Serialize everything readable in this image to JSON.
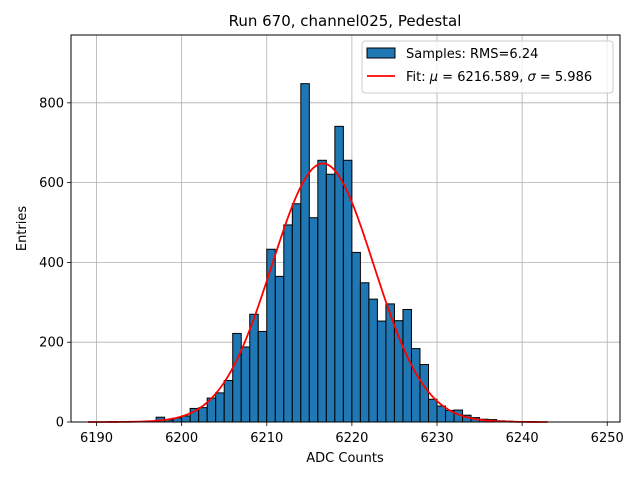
{
  "chart_data": {
    "type": "bar",
    "title": "Run 670, channel025, Pedestal",
    "xlabel": "ADC Counts",
    "ylabel": "Entries",
    "xlim": [
      6187,
      6251.5
    ],
    "ylim": [
      0,
      970
    ],
    "xticks": [
      6190,
      6200,
      6210,
      6220,
      6230,
      6240,
      6250
    ],
    "yticks": [
      0,
      200,
      400,
      600,
      800
    ],
    "grid": true,
    "legend_position": "top-right",
    "bin_edges": [
      6189,
      6190,
      6191,
      6192,
      6193,
      6194,
      6195,
      6196,
      6197,
      6198,
      6199,
      6200,
      6201,
      6202,
      6203,
      6204,
      6205,
      6206,
      6207,
      6208,
      6209,
      6210,
      6211,
      6212,
      6213,
      6214,
      6215,
      6216,
      6217,
      6218,
      6219,
      6220,
      6221,
      6222,
      6223,
      6224,
      6225,
      6226,
      6227,
      6228,
      6229,
      6230,
      6231,
      6232,
      6233,
      6234,
      6235,
      6236,
      6237,
      6238,
      6239,
      6240,
      6241,
      6242,
      6243
    ],
    "series": [
      {
        "kind": "histogram",
        "legend": "Samples: RMS=6.24",
        "color": "#1f77b4",
        "edgecolor": "#000000",
        "values": [
          0,
          0,
          0,
          0,
          0,
          0,
          0,
          0,
          12,
          5,
          10,
          15,
          34,
          36,
          60,
          73,
          104,
          222,
          188,
          270,
          227,
          433,
          365,
          494,
          547,
          848,
          512,
          656,
          621,
          741,
          656,
          425,
          349,
          308,
          253,
          296,
          254,
          282,
          184,
          144,
          57,
          40,
          29,
          30,
          17,
          11,
          7,
          6,
          3,
          2,
          1,
          0,
          0,
          0
        ]
      },
      {
        "kind": "fit",
        "legend_prefix": "Fit: ",
        "legend_mu_symbol": "μ",
        "legend_mu_value": " = 6216.589, ",
        "legend_sigma_symbol": "σ",
        "legend_sigma_value": " = 5.986",
        "color": "#ff0000",
        "mu": 6216.589,
        "sigma": 5.986,
        "amplitude": 648,
        "x_range": [
          6189,
          6243
        ]
      }
    ]
  }
}
